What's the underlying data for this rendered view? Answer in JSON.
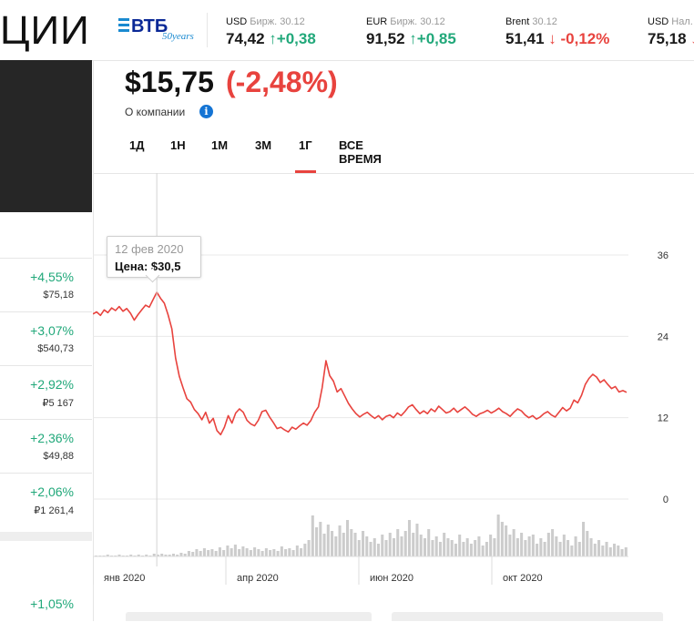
{
  "header": {
    "page_title": "ЦИИ",
    "logo": {
      "name": "vtb-50-logo",
      "text": "ВТБ",
      "sub": "50years"
    },
    "quotes": [
      {
        "name": "USD",
        "sub": "Бирж. 30.12",
        "value": "74,42",
        "direction": "up",
        "change": "+0,38"
      },
      {
        "name": "EUR",
        "sub": "Бирж. 30.12",
        "value": "91,52",
        "direction": "up",
        "change": "+0,85"
      },
      {
        "name": "Brent",
        "sub": "30.12",
        "value": "51,41",
        "direction": "down",
        "change": "-0,12%"
      },
      {
        "name": "USD",
        "sub": "Нал.",
        "value": "75,18",
        "direction": "down",
        "change": ""
      }
    ]
  },
  "left_list": [
    {
      "pct": "+4,55%",
      "price": "$75,18"
    },
    {
      "pct": "+3,07%",
      "price": "$540,73"
    },
    {
      "pct": "+2,92%",
      "price": "₽5 167"
    },
    {
      "pct": "+2,36%",
      "price": "$49,88"
    },
    {
      "pct": "+2,06%",
      "price": "₽1 261,4"
    },
    {
      "pct": "+1,05%",
      "price": ""
    }
  ],
  "stock": {
    "price": "$15,75",
    "change": "(-2,48%)",
    "about_label": "О компании",
    "info_icon": "info-icon"
  },
  "period_tabs": [
    {
      "label": "1Д",
      "active": false
    },
    {
      "label": "1Н",
      "active": false
    },
    {
      "label": "1М",
      "active": false
    },
    {
      "label": "3М",
      "active": false
    },
    {
      "label": "1Г",
      "active": true
    },
    {
      "label": "ВСЕ ВРЕМЯ",
      "active": false
    }
  ],
  "tooltip": {
    "date": "12 фев 2020",
    "price": "Цена: $30,5"
  },
  "colors": {
    "accent": "#e8433e",
    "up": "#21a87a",
    "line": "#e8433e",
    "volume": "#cccccc"
  },
  "chart_data": {
    "type": "line",
    "title": "",
    "xlabel": "",
    "ylabel": "",
    "x_tick_labels": [
      "янв 2020",
      "апр 2020",
      "июн 2020",
      "окт 2020"
    ],
    "y_ticks": [
      0,
      12,
      24,
      36
    ],
    "ylim": [
      0,
      36
    ],
    "y_axis_side": "right",
    "grid": true,
    "series": [
      {
        "values": [
          27.3,
          27.6,
          27.1,
          27.9,
          27.5,
          28.2,
          27.8,
          28.4,
          27.7,
          28.1,
          27.4,
          26.4,
          27.2,
          27.9,
          28.6,
          28.3,
          29.4,
          30.5,
          29.6,
          28.9,
          27.2,
          25.1,
          20.8,
          18.1,
          16.4,
          14.8,
          14.3,
          13.2,
          12.6,
          11.7,
          12.8,
          11.2,
          11.9,
          10.1,
          9.5,
          10.6,
          12.3,
          11.2,
          12.7,
          13.3,
          12.8,
          11.6,
          11.1,
          10.8,
          11.6,
          12.9,
          13.1,
          12.1,
          11.3,
          10.4,
          10.6,
          10.2,
          9.9,
          10.6,
          10.3,
          10.8,
          11.2,
          10.9,
          11.6,
          12.8,
          13.6,
          16.4,
          20.4,
          18.2,
          17.4,
          15.8,
          16.3,
          15.2,
          14.1,
          13.3,
          12.6,
          12.1,
          12.5,
          12.8,
          12.3,
          11.9,
          12.3,
          11.7,
          12.2,
          12.4,
          12.0,
          12.7,
          12.3,
          12.9,
          13.6,
          13.9,
          13.2,
          12.6,
          13.0,
          12.6,
          13.3,
          12.9,
          13.7,
          13.2,
          12.7,
          12.9,
          13.4,
          12.8,
          13.2,
          13.6,
          13.1,
          12.5,
          12.2,
          12.6,
          12.8,
          13.1,
          12.7,
          13.0,
          13.4,
          12.9,
          12.6,
          12.2,
          12.8,
          13.3,
          13.0,
          12.4,
          12.0,
          12.3,
          11.8,
          12.1,
          12.6,
          12.9,
          12.4,
          12.1,
          12.8,
          13.5,
          13.0,
          13.4,
          14.6,
          14.2,
          15.3,
          16.9,
          17.8,
          18.4,
          18.0,
          17.2,
          17.6,
          16.9,
          16.3,
          16.6,
          15.8,
          16.0,
          15.75
        ]
      }
    ],
    "volume": [
      1,
      1,
      1,
      2,
      1,
      1,
      2,
      1,
      1,
      2,
      1,
      2,
      1,
      2,
      1,
      3,
      2,
      3,
      2,
      2,
      3,
      2,
      4,
      3,
      6,
      5,
      8,
      6,
      9,
      7,
      8,
      6,
      10,
      7,
      12,
      9,
      13,
      8,
      11,
      9,
      7,
      10,
      8,
      6,
      9,
      7,
      8,
      6,
      11,
      8,
      9,
      7,
      12,
      9,
      14,
      18,
      45,
      32,
      38,
      25,
      35,
      28,
      22,
      34,
      26,
      40,
      30,
      26,
      18,
      28,
      22,
      16,
      20,
      14,
      24,
      18,
      26,
      20,
      30,
      22,
      28,
      40,
      26,
      36,
      24,
      20,
      30,
      18,
      22,
      16,
      26,
      20,
      18,
      14,
      24,
      16,
      20,
      14,
      18,
      22,
      12,
      16,
      24,
      20,
      46,
      38,
      34,
      24,
      30,
      20,
      26,
      18,
      22,
      24,
      14,
      20,
      16,
      26,
      30,
      22,
      16,
      24,
      18,
      12,
      22,
      16,
      38,
      28,
      20,
      14,
      18,
      12,
      16,
      10,
      14,
      12,
      8,
      10
    ]
  }
}
